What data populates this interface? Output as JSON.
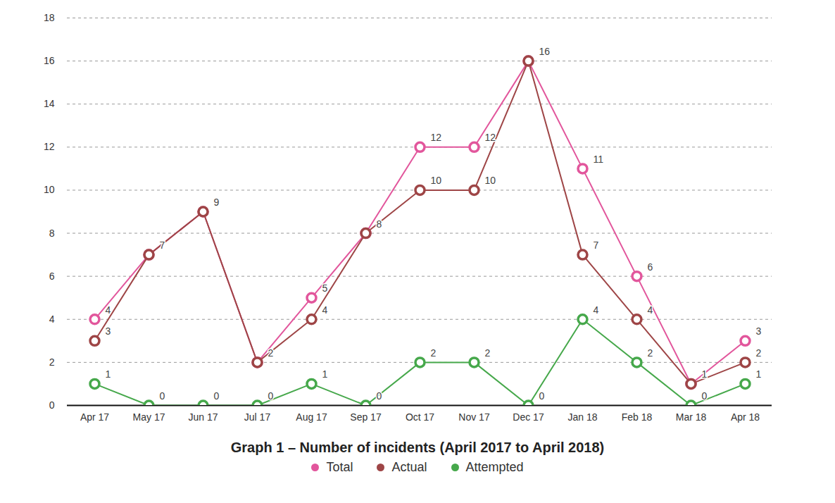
{
  "chart_data": {
    "type": "line",
    "title": "Graph 1 – Number of incidents (April 2017 to April 2018)",
    "categories": [
      "Apr 17",
      "May 17",
      "Jun 17",
      "Jul 17",
      "Aug 17",
      "Sep 17",
      "Oct 17",
      "Nov 17",
      "Dec 17",
      "Jan 18",
      "Feb 18",
      "Mar 18",
      "Apr 18"
    ],
    "series": [
      {
        "name": "Total",
        "color": "#e2569c",
        "values": [
          4,
          7,
          9,
          2,
          5,
          8,
          12,
          12,
          16,
          11,
          6,
          1,
          3
        ]
      },
      {
        "name": "Actual",
        "color": "#9e4546",
        "values": [
          3,
          7,
          9,
          2,
          4,
          8,
          10,
          10,
          16,
          7,
          4,
          1,
          2
        ]
      },
      {
        "name": "Attempted",
        "color": "#46a84b",
        "values": [
          1,
          0,
          0,
          0,
          1,
          0,
          2,
          2,
          0,
          4,
          2,
          0,
          1
        ]
      }
    ],
    "ylim": [
      0,
      18
    ],
    "yticks": [
      0,
      2,
      4,
      6,
      8,
      10,
      12,
      14,
      16,
      18
    ],
    "grid": true,
    "data_labels": true,
    "legend": "bottom",
    "marker": "circle"
  }
}
